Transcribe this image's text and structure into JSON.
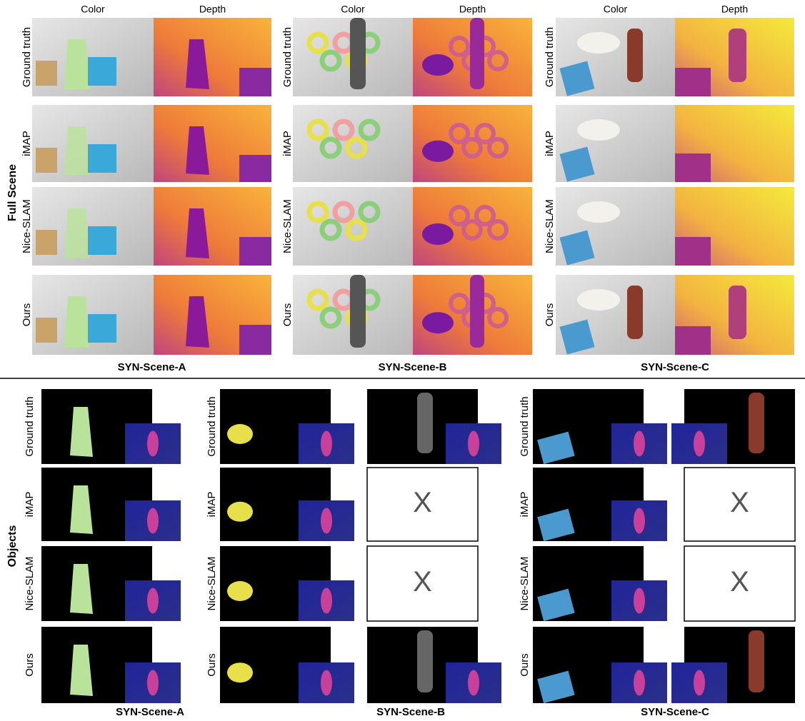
{
  "full_scene": {
    "label": "Full Scene",
    "column_headers": [
      "Color",
      "Depth"
    ],
    "row_labels": [
      "Ground truth",
      "iMAP",
      "Nice-SLAM",
      "Ours"
    ],
    "scenes": [
      "SYN-Scene-A",
      "SYN-Scene-B",
      "SYN-Scene-C"
    ]
  },
  "objects": {
    "label": "Objects",
    "row_labels": [
      "Ground truth",
      "iMAP",
      "Nice-SLAM",
      "Ours"
    ],
    "scenes": [
      "SYN-Scene-A",
      "SYN-Scene-B",
      "SYN-Scene-C"
    ],
    "missing_mark": "X"
  }
}
